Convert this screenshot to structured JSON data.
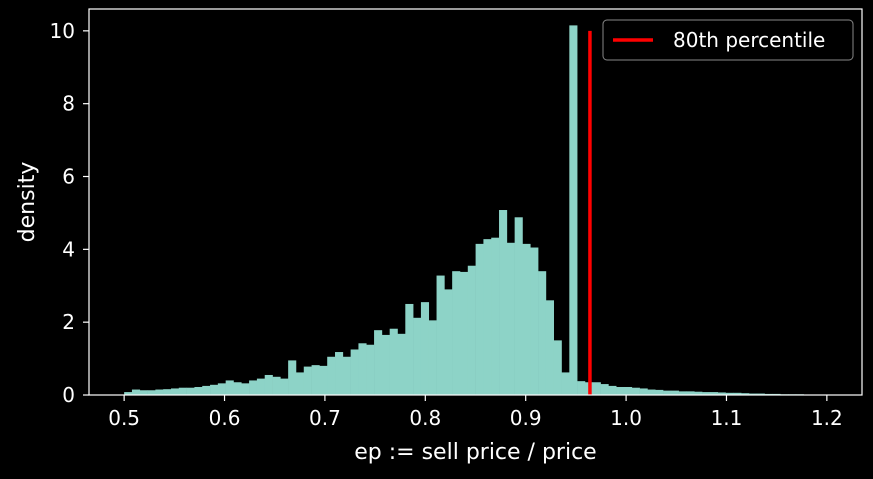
{
  "chart_data": {
    "type": "bar",
    "title": "",
    "xlabel": "ep := sell price / price",
    "ylabel": "density",
    "xlim": [
      0.465,
      1.235
    ],
    "ylim": [
      0,
      10.6
    ],
    "xticks": [
      "0.5",
      "0.6",
      "0.7",
      "0.8",
      "0.9",
      "1.0",
      "1.1",
      "1.2"
    ],
    "xtick_values": [
      0.5,
      0.6,
      0.7,
      0.8,
      0.9,
      1.0,
      1.1,
      1.2
    ],
    "yticks": [
      "0",
      "2",
      "4",
      "6",
      "8",
      "10"
    ],
    "ytick_values": [
      0,
      2,
      4,
      6,
      8,
      10
    ],
    "grid": false,
    "legend_position": "top-right",
    "bin_range": [
      0.5,
      1.2
    ],
    "bin_width": 0.00778,
    "densities": [
      0.08,
      0.15,
      0.13,
      0.13,
      0.15,
      0.16,
      0.18,
      0.2,
      0.2,
      0.22,
      0.25,
      0.28,
      0.32,
      0.4,
      0.35,
      0.32,
      0.4,
      0.45,
      0.55,
      0.5,
      0.45,
      0.95,
      0.62,
      0.78,
      0.82,
      0.8,
      1.05,
      1.18,
      1.05,
      1.25,
      1.42,
      1.38,
      1.78,
      1.65,
      1.82,
      1.68,
      2.5,
      2.12,
      2.55,
      2.05,
      3.28,
      2.9,
      3.4,
      3.38,
      3.55,
      4.15,
      4.28,
      4.32,
      5.08,
      4.18,
      4.88,
      4.15,
      4.05,
      3.4,
      2.6,
      1.5,
      0.62,
      10.15,
      0.38,
      0.35,
      0.35,
      0.3,
      0.25,
      0.22,
      0.22,
      0.2,
      0.18,
      0.15,
      0.14,
      0.12,
      0.12,
      0.1,
      0.1,
      0.09,
      0.08,
      0.08,
      0.07,
      0.06,
      0.06,
      0.05,
      0.04,
      0.04,
      0.03,
      0.03,
      0.02,
      0.02,
      0.02,
      0.01,
      0.01,
      0.01
    ],
    "bar_color": "#8dd3c7",
    "percentile_line": {
      "label": "80th percentile",
      "x": 0.964,
      "y_range": [
        0,
        10
      ],
      "color": "#ff0000"
    },
    "legend": {
      "entries": [
        {
          "label": "80th percentile",
          "color": "#ff0000"
        }
      ]
    }
  }
}
